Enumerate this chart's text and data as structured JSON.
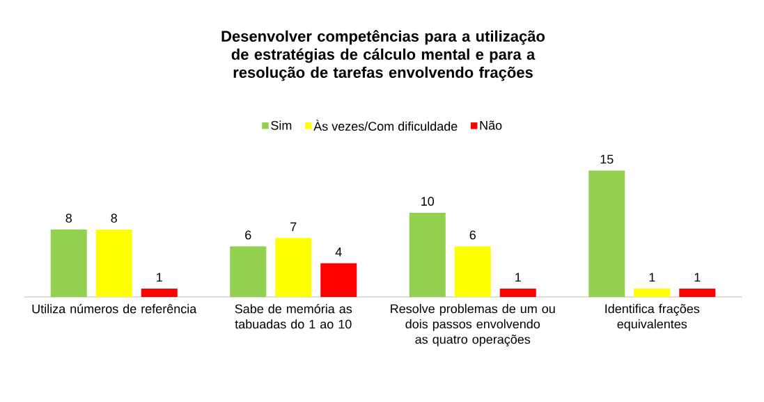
{
  "chart_data": {
    "type": "bar",
    "title": "Desenvolver competências para a utilização de estratégias de cálculo mental e para a resolução de tarefas envolvendo frações",
    "categories": [
      "Utiliza números de referência",
      "Sabe de memória as tabuadas do 1 ao 10",
      "Resolve problemas de um ou dois passos envolvendo as quatro operações",
      "Identifica frações equivalentes"
    ],
    "series": [
      {
        "name": "Sim",
        "color": "#92d050",
        "values": [
          8,
          6,
          10,
          15
        ]
      },
      {
        "name": "Às vezes/Com dificuldade",
        "color": "#ffff00",
        "values": [
          8,
          7,
          6,
          1
        ]
      },
      {
        "name": "Não",
        "color": "#ff0000",
        "values": [
          1,
          4,
          1,
          1
        ]
      }
    ],
    "data_labels": true,
    "legend": "top"
  }
}
